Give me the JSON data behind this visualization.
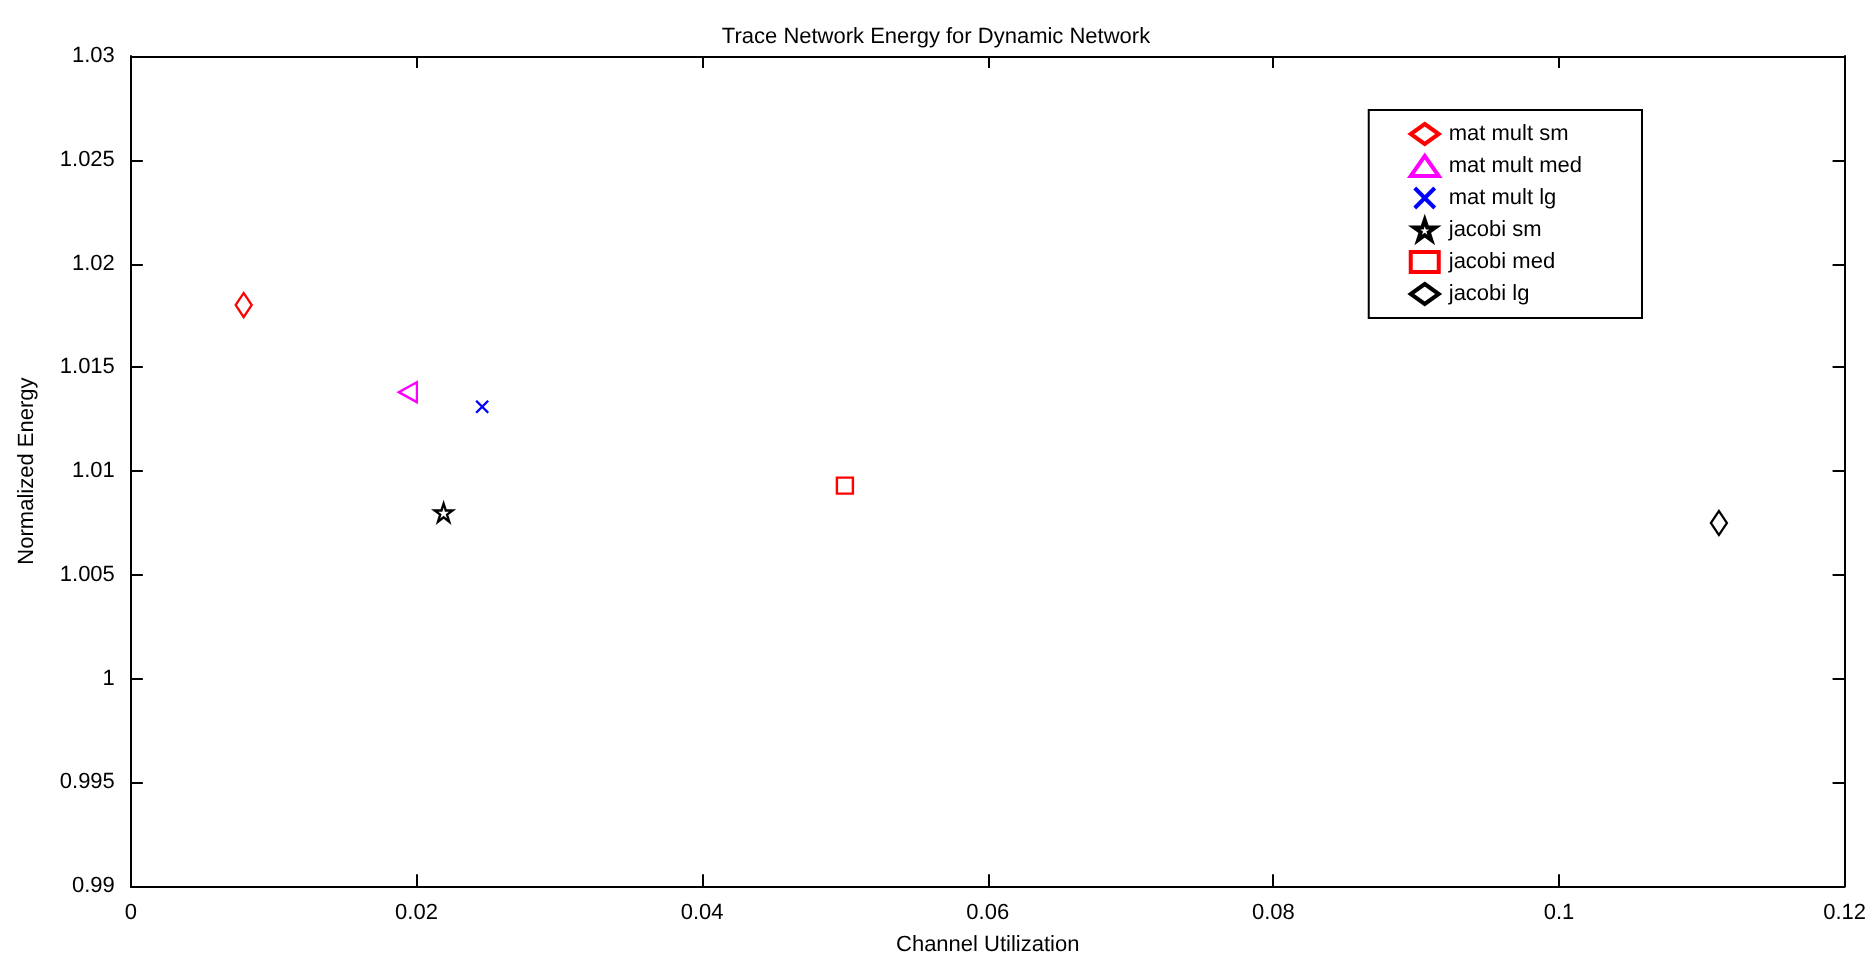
{
  "chart_data": {
    "type": "scatter",
    "title": "Trace Network Energy for Dynamic Network",
    "xlabel": "Channel Utilization",
    "ylabel": "Normalized Energy",
    "series": [
      {
        "name": "mat mult sm",
        "color": "#ff0000",
        "marker": "diamond",
        "x": [
          0.0079
        ],
        "values": [
          1.018
        ]
      },
      {
        "name": "mat mult med",
        "color": "#ff00ff",
        "marker": "triangle",
        "x": [
          0.0194
        ],
        "values": [
          1.0138
        ]
      },
      {
        "name": "mat mult lg",
        "color": "#0000ff",
        "marker": "cross",
        "x": [
          0.0246
        ],
        "values": [
          1.0131
        ]
      },
      {
        "name": "jacobi sm",
        "color": "#000000",
        "marker": "star",
        "x": [
          0.0219
        ],
        "values": [
          1.008
        ]
      },
      {
        "name": "jacobi med",
        "color": "#ff0000",
        "marker": "square",
        "x": [
          0.05
        ],
        "values": [
          1.0093
        ]
      },
      {
        "name": "jacobi lg",
        "color": "#000000",
        "marker": "diamond",
        "x": [
          0.1112
        ],
        "values": [
          1.0075
        ]
      }
    ],
    "xlim": [
      0,
      0.12
    ],
    "xticks": [
      0,
      0.02,
      0.04,
      0.06,
      0.08,
      0.1,
      0.12
    ],
    "ylim": [
      0.99,
      1.03
    ],
    "yticks": [
      0.99,
      0.995,
      1,
      1.005,
      1.01,
      1.015,
      1.02,
      1.025,
      1.03
    ],
    "grid": false,
    "legend": "top right"
  }
}
